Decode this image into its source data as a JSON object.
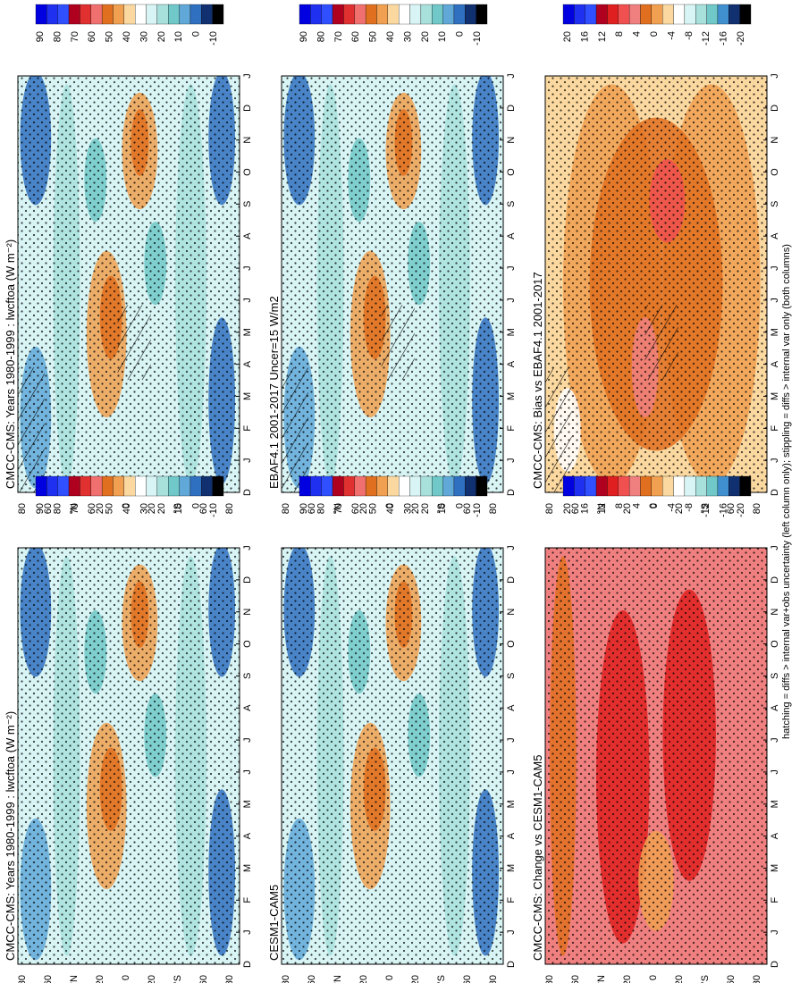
{
  "figure": {
    "orientation": "rotated 90 degrees clockwise",
    "footer": "hatching = diffs > internal var+obs uncertainty (left column only); stippling = diffs > internal var only (both columns)"
  },
  "colors": {
    "abs_scale": [
      "#0000e0",
      "#2030f0",
      "#3050ff",
      "#b00020",
      "#e03030",
      "#f07070",
      "#e07020",
      "#f0a050",
      "#fad8a0",
      "#ffffff",
      "#d8f4f4",
      "#a8e0dc",
      "#70c8c8",
      "#60a8d8",
      "#3070c0",
      "#103070",
      "#000000"
    ],
    "diff_scale": [
      "#0000e0",
      "#2030f0",
      "#3050ff",
      "#b00020",
      "#e02020",
      "#f05050",
      "#f08080",
      "#e07020",
      "#f0a050",
      "#fad8a0",
      "#ffffff",
      "#d8f4f4",
      "#a8e0dc",
      "#70c8c8",
      "#4090d0",
      "#103070",
      "#000000"
    ]
  },
  "chart_data": [
    {
      "type": "heatmap",
      "title": "CMCC-CMS: Years 1980-1999 : lwcftoa (W m⁻²)",
      "months": [
        "D",
        "J",
        "F",
        "M",
        "A",
        "M",
        "J",
        "J",
        "A",
        "S",
        "O",
        "N",
        "D",
        "J"
      ],
      "lat_ticks": [
        "80",
        "60",
        "°N",
        "20",
        "0",
        "20",
        "°S",
        "60",
        "80"
      ],
      "colorbar": [
        "90",
        "80",
        "70",
        "60",
        "50",
        "40",
        "30",
        "20",
        "10",
        "0",
        "-10"
      ],
      "hatching": true,
      "stippling": true
    },
    {
      "type": "heatmap",
      "title": "CMCC-CMS: Years 1980-1999 : lwcftoa (W m⁻²)",
      "months": [
        "D",
        "J",
        "F",
        "M",
        "A",
        "M",
        "J",
        "J",
        "A",
        "S",
        "O",
        "N",
        "D",
        "J"
      ],
      "lat_ticks": [
        "80",
        "60",
        "°N",
        "20",
        "0",
        "20",
        "°S",
        "60",
        "80"
      ],
      "colorbar": [
        "90",
        "80",
        "70",
        "60",
        "50",
        "40",
        "30",
        "20",
        "10",
        "0",
        "-10"
      ],
      "hatching": false,
      "stippling": true
    },
    {
      "type": "heatmap",
      "title": "EBAF4.1 2001-2017 Uncer=15 W/m2",
      "months": [
        "D",
        "J",
        "F",
        "M",
        "A",
        "M",
        "J",
        "J",
        "A",
        "S",
        "O",
        "N",
        "D",
        "J"
      ],
      "lat_ticks": [
        "80",
        "60",
        "°N",
        "20",
        "0",
        "20",
        "°S",
        "60",
        "80"
      ],
      "colorbar": [
        "90",
        "80",
        "70",
        "60",
        "50",
        "40",
        "30",
        "20",
        "10",
        "0",
        "-10"
      ],
      "hatching": true,
      "stippling": true
    },
    {
      "type": "heatmap",
      "title": "CESM1-CAM5",
      "months": [
        "D",
        "J",
        "F",
        "M",
        "A",
        "M",
        "J",
        "J",
        "A",
        "S",
        "O",
        "N",
        "D",
        "J"
      ],
      "lat_ticks": [
        "80",
        "60",
        "°N",
        "20",
        "0",
        "20",
        "°S",
        "60",
        "80"
      ],
      "colorbar": [
        "90",
        "80",
        "70",
        "60",
        "50",
        "40",
        "30",
        "20",
        "10",
        "0",
        "-10"
      ],
      "hatching": false,
      "stippling": true
    },
    {
      "type": "heatmap",
      "title": "CMCC-CMS: Bias vs EBAF4.1 2001-2017",
      "months": [
        "D",
        "J",
        "F",
        "M",
        "A",
        "M",
        "J",
        "J",
        "A",
        "S",
        "O",
        "N",
        "D",
        "J"
      ],
      "lat_ticks": [
        "80",
        "60",
        "°N",
        "20",
        "0",
        "20",
        "°S",
        "60",
        "80"
      ],
      "colorbar": [
        "20",
        "16",
        "12",
        "8",
        "4",
        "0",
        "-4",
        "-8",
        "-12",
        "-16",
        "-20"
      ],
      "hatching": true,
      "stippling": true
    },
    {
      "type": "heatmap",
      "title": "CMCC-CMS: Change vs CESM1-CAM5",
      "months": [
        "D",
        "J",
        "F",
        "M",
        "A",
        "M",
        "J",
        "J",
        "A",
        "S",
        "O",
        "N",
        "D",
        "J"
      ],
      "lat_ticks": [
        "80",
        "60",
        "°N",
        "20",
        "0",
        "20",
        "°S",
        "60",
        "80"
      ],
      "colorbar": [
        "20",
        "16",
        "12",
        "8",
        "4",
        "0",
        "-4",
        "-8",
        "-12",
        "-16",
        "-20"
      ],
      "hatching": false,
      "stippling": true
    }
  ]
}
